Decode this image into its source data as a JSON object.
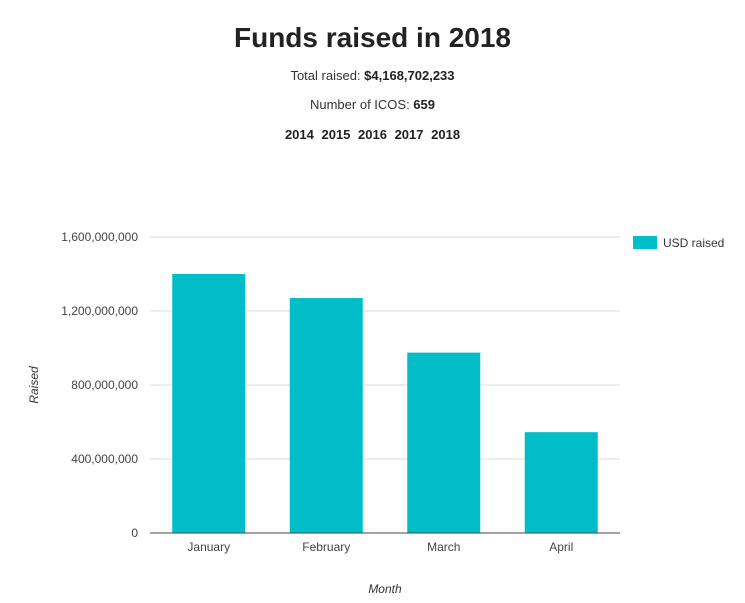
{
  "header": {
    "title": "Funds raised in 2018",
    "total_label": "Total raised: ",
    "total_value": "$4,168,702,233",
    "count_label": "Number of ICOS: ",
    "count_value": "659",
    "years": [
      "2014",
      "2015",
      "2016",
      "2017",
      "2018"
    ]
  },
  "colors": {
    "bar": "#00bdc7",
    "grid": "#dddddd",
    "axis": "#444444"
  },
  "chart_data": {
    "type": "bar",
    "categories": [
      "January",
      "February",
      "March",
      "April"
    ],
    "series": [
      {
        "name": "USD raised",
        "values": [
          1400000000,
          1270000000,
          975000000,
          545000000
        ]
      }
    ],
    "xlabel": "Month",
    "ylabel": "Raised",
    "ylim": [
      0,
      1600000000
    ],
    "yticks": [
      0,
      400000000,
      800000000,
      1200000000,
      1600000000
    ],
    "ytick_labels": [
      "0",
      "400,000,000",
      "800,000,000",
      "1,200,000,000",
      "1,600,000,000"
    ],
    "grid": true,
    "legend_position": "right"
  }
}
